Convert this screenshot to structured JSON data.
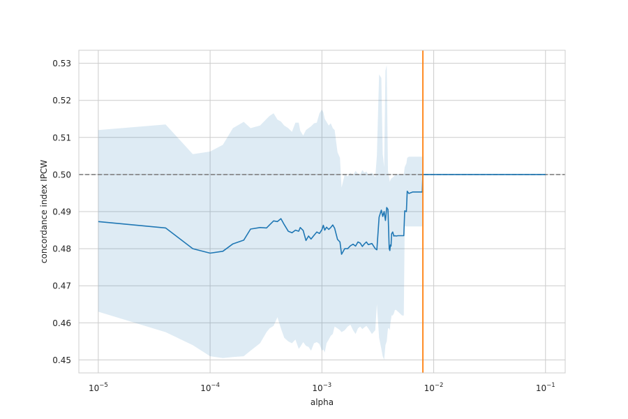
{
  "chart_data": {
    "type": "line",
    "xscale": "log",
    "xlabel": "alpha",
    "ylabel": "concordance index IPCW",
    "xlim": [
      6.7e-06,
      0.15
    ],
    "ylim": [
      0.4465,
      0.5335
    ],
    "x_ticks": [
      {
        "value": 1e-05,
        "base": "10",
        "exp": "−5"
      },
      {
        "value": 0.0001,
        "base": "10",
        "exp": "−4"
      },
      {
        "value": 0.001,
        "base": "10",
        "exp": "−3"
      },
      {
        "value": 0.01,
        "base": "10",
        "exp": "−2"
      },
      {
        "value": 0.1,
        "base": "10",
        "exp": "−1"
      }
    ],
    "y_ticks": [
      0.45,
      0.46,
      0.47,
      0.48,
      0.49,
      0.5,
      0.51,
      0.52,
      0.53
    ],
    "grid": true,
    "legend": "none",
    "colors": {
      "mean_line": "#1f77b4",
      "band": "#1f77b4",
      "reference_line": "#808080",
      "best_alpha_line": "#ff7f0e",
      "grid": "#cccccc",
      "spine": "#cccccc"
    },
    "reference_line": {
      "y": 0.5,
      "style": "dashed"
    },
    "best_alpha_line": {
      "x": 0.008
    },
    "series": [
      {
        "kind": "mean",
        "x": [
          1e-05,
          4e-05,
          7e-05,
          0.0001,
          0.00013,
          0.00016,
          0.0002,
          0.00023,
          0.00028,
          0.00032,
          0.00034,
          0.00037,
          0.0004,
          0.00043,
          0.00046,
          0.0005,
          0.00054,
          0.00058,
          0.00062,
          0.00064,
          0.00068,
          0.00072,
          0.00076,
          0.0008,
          0.00085,
          0.0009,
          0.00095,
          0.001,
          0.00103,
          0.00106,
          0.0011,
          0.00115,
          0.0012,
          0.00125,
          0.0013,
          0.00138,
          0.00145,
          0.0015,
          0.0016,
          0.0017,
          0.0018,
          0.0019,
          0.002,
          0.0021,
          0.0022,
          0.0023,
          0.0024,
          0.0025,
          0.0026,
          0.0028,
          0.003,
          0.0031,
          0.00325,
          0.0034,
          0.0035,
          0.0036,
          0.0037,
          0.0038,
          0.0039,
          0.004,
          0.00405,
          0.0041,
          0.00415,
          0.0042,
          0.0043,
          0.0044,
          0.0045,
          0.0046,
          0.0048,
          0.005,
          0.0052,
          0.0054,
          0.0055,
          0.0056,
          0.0057,
          0.0058,
          0.006,
          0.0065,
          0.007,
          0.0075,
          0.0079,
          0.008,
          0.009,
          0.01,
          0.02,
          0.05,
          0.1
        ],
        "y": [
          0.4873,
          0.4856,
          0.48,
          0.4788,
          0.4793,
          0.4813,
          0.4823,
          0.4853,
          0.4857,
          0.4856,
          0.4864,
          0.4875,
          0.4873,
          0.4881,
          0.4865,
          0.4847,
          0.4843,
          0.485,
          0.4847,
          0.4857,
          0.4849,
          0.4822,
          0.4834,
          0.4826,
          0.4836,
          0.4845,
          0.4841,
          0.4851,
          0.4863,
          0.485,
          0.4858,
          0.4852,
          0.4857,
          0.4864,
          0.4855,
          0.4825,
          0.4818,
          0.4785,
          0.48,
          0.48,
          0.4808,
          0.4812,
          0.4807,
          0.4818,
          0.4815,
          0.4806,
          0.4813,
          0.4818,
          0.4811,
          0.4814,
          0.48,
          0.4797,
          0.4885,
          0.4904,
          0.4887,
          0.49,
          0.4876,
          0.4911,
          0.4906,
          0.48,
          0.4795,
          0.481,
          0.4807,
          0.484,
          0.4845,
          0.4834,
          0.4835,
          0.4834,
          0.4835,
          0.4835,
          0.4835,
          0.4835,
          0.4902,
          0.4901,
          0.49,
          0.4955,
          0.4949,
          0.4953,
          0.4953,
          0.4953,
          0.4953,
          0.5,
          0.5,
          0.5,
          0.5,
          0.5,
          0.5
        ]
      },
      {
        "kind": "band",
        "x": [
          1e-05,
          4e-05,
          7e-05,
          0.0001,
          0.00013,
          0.00016,
          0.0002,
          0.00023,
          0.00028,
          0.00032,
          0.00034,
          0.00037,
          0.0004,
          0.00043,
          0.00046,
          0.0005,
          0.00054,
          0.00058,
          0.00062,
          0.00064,
          0.00068,
          0.00072,
          0.00076,
          0.0008,
          0.00085,
          0.0009,
          0.00095,
          0.001,
          0.00103,
          0.00106,
          0.0011,
          0.00115,
          0.0012,
          0.00125,
          0.0013,
          0.00138,
          0.00145,
          0.0015,
          0.0016,
          0.0017,
          0.0018,
          0.0019,
          0.002,
          0.0021,
          0.0022,
          0.0023,
          0.0024,
          0.0025,
          0.0026,
          0.0028,
          0.003,
          0.0031,
          0.00325,
          0.0034,
          0.0035,
          0.0036,
          0.0037,
          0.0038,
          0.0039,
          0.004,
          0.00405,
          0.0041,
          0.00415,
          0.0042,
          0.0043,
          0.0044,
          0.0045,
          0.0046,
          0.0048,
          0.005,
          0.0052,
          0.0054,
          0.0055,
          0.0056,
          0.0057,
          0.0058,
          0.006,
          0.0065,
          0.007,
          0.0075,
          0.0079,
          0.008,
          0.009,
          0.01,
          0.02,
          0.05,
          0.1
        ],
        "upper": [
          0.512,
          0.5135,
          0.5055,
          0.5062,
          0.508,
          0.5125,
          0.5142,
          0.5125,
          0.5132,
          0.515,
          0.5158,
          0.5165,
          0.5148,
          0.5143,
          0.5132,
          0.5125,
          0.5115,
          0.514,
          0.514,
          0.5118,
          0.5105,
          0.512,
          0.5125,
          0.513,
          0.5138,
          0.514,
          0.5165,
          0.5175,
          0.5168,
          0.515,
          0.5142,
          0.5132,
          0.5138,
          0.5125,
          0.512,
          0.506,
          0.5045,
          0.4965,
          0.5,
          0.4995,
          0.5005,
          0.4998,
          0.501,
          0.5002,
          0.5,
          0.5012,
          0.5005,
          0.5008,
          0.5,
          0.5005,
          0.4993,
          0.505,
          0.527,
          0.526,
          0.5055,
          0.502,
          0.528,
          0.5295,
          0.501,
          0.499,
          0.498,
          0.4985,
          0.4988,
          0.499,
          0.4992,
          0.4995,
          0.4998,
          0.5,
          0.5,
          0.5,
          0.5,
          0.5,
          0.502,
          0.5025,
          0.503,
          0.5045,
          0.5048,
          0.5048,
          0.5048,
          0.5048,
          0.5048,
          0.5002,
          0.5002,
          0.5002,
          0.5002,
          0.5002,
          0.5002
        ],
        "lower": [
          0.463,
          0.4575,
          0.454,
          0.451,
          0.4505,
          0.4508,
          0.451,
          0.4525,
          0.4545,
          0.4575,
          0.4585,
          0.4592,
          0.4615,
          0.4585,
          0.456,
          0.455,
          0.4545,
          0.4555,
          0.453,
          0.4535,
          0.4548,
          0.4538,
          0.4535,
          0.4525,
          0.4545,
          0.4548,
          0.4543,
          0.4525,
          0.4528,
          0.452,
          0.4545,
          0.4555,
          0.4565,
          0.457,
          0.459,
          0.4585,
          0.458,
          0.4575,
          0.458,
          0.459,
          0.4595,
          0.458,
          0.457,
          0.4585,
          0.459,
          0.4583,
          0.4588,
          0.4592,
          0.4585,
          0.457,
          0.458,
          0.465,
          0.456,
          0.453,
          0.451,
          0.45,
          0.454,
          0.455,
          0.4585,
          0.4585,
          0.458,
          0.46,
          0.461,
          0.462,
          0.462,
          0.4625,
          0.4635,
          0.4635,
          0.463,
          0.4625,
          0.462,
          0.462,
          0.486,
          0.486,
          0.486,
          0.486,
          0.486,
          0.486,
          0.486,
          0.486,
          0.486,
          0.4998,
          0.4998,
          0.4998,
          0.4998,
          0.4998,
          0.4998
        ]
      }
    ]
  }
}
